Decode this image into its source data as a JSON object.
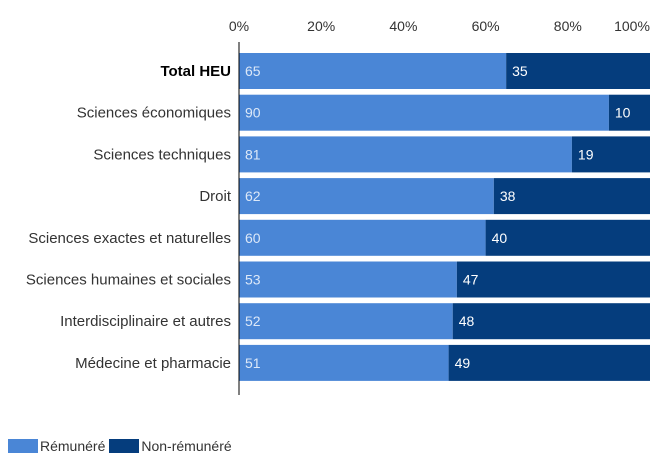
{
  "chart_data": {
    "type": "bar",
    "orientation": "horizontal",
    "stacked": true,
    "categories": [
      "Total HEU",
      "Sciences économiques",
      "Sciences techniques",
      "Droit",
      "Sciences exactes et naturelles",
      "Sciences humaines et sociales",
      "Interdisciplinaire et autres",
      "Médecine et pharmacie"
    ],
    "bold_category": "Total HEU",
    "series": [
      {
        "name": "Rémunéré",
        "color": "#4a86d6",
        "values": [
          65,
          90,
          81,
          62,
          60,
          53,
          52,
          51
        ]
      },
      {
        "name": "Non-rémunéré",
        "color": "#053d7d",
        "values": [
          35,
          10,
          19,
          38,
          40,
          47,
          48,
          49
        ]
      }
    ],
    "xticks": [
      "0%",
      "20%",
      "40%",
      "60%",
      "80%",
      "100%"
    ],
    "xlim": [
      0,
      100
    ],
    "axis_position": "top",
    "legend_position": "bottom-left"
  }
}
